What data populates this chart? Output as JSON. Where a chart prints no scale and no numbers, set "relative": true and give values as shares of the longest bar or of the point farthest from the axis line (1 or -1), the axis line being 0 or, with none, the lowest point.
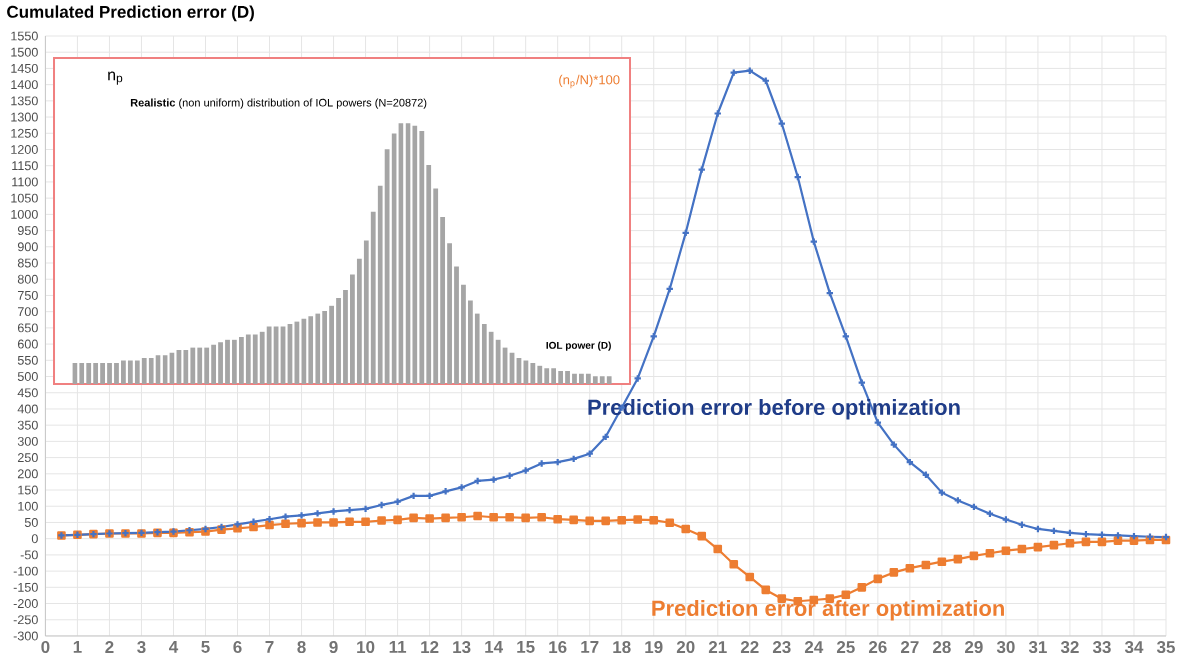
{
  "chart_data": [
    {
      "type": "line",
      "title": "Cumulated Prediction error (D)",
      "x": [
        0.5,
        1,
        1.5,
        2,
        2.5,
        3,
        3.5,
        4,
        4.5,
        5,
        5.5,
        6,
        6.5,
        7,
        7.5,
        8,
        8.5,
        9,
        9.5,
        10,
        10.5,
        11,
        11.5,
        12,
        12.5,
        13,
        13.5,
        14,
        14.5,
        15,
        15.5,
        16,
        16.5,
        17,
        17.5,
        18,
        18.5,
        19,
        19.5,
        20,
        20.5,
        21,
        21.5,
        22,
        22.5,
        23,
        23.5,
        24,
        24.5,
        25,
        25.5,
        26,
        26.5,
        27,
        27.5,
        28,
        28.5,
        29,
        29.5,
        30,
        30.5,
        31,
        31.5,
        32,
        32.5,
        33,
        33.5,
        34,
        34.5,
        35
      ],
      "series": [
        {
          "name": "Prediction error before optimization",
          "color": "#4472c4",
          "marker": "cross",
          "values": [
            10,
            12,
            14,
            16,
            17,
            18,
            20,
            22,
            26,
            30,
            36,
            44,
            52,
            60,
            68,
            72,
            78,
            84,
            88,
            92,
            104,
            114,
            132,
            132,
            146,
            158,
            178,
            182,
            194,
            210,
            232,
            236,
            246,
            262,
            314,
            404,
            494,
            624,
            770,
            943,
            1138,
            1311,
            1437,
            1443,
            1412,
            1280,
            1115,
            916,
            757,
            624,
            481,
            358,
            290,
            236,
            197,
            142,
            118,
            98,
            77,
            59,
            43,
            30,
            24,
            18,
            14,
            12,
            10,
            8,
            6,
            5
          ]
        },
        {
          "name": "Prediction error after optimization",
          "color": "#ed7d31",
          "marker": "square",
          "values": [
            10,
            12,
            14,
            16,
            16,
            16,
            18,
            18,
            20,
            22,
            28,
            32,
            36,
            42,
            46,
            48,
            50,
            50,
            52,
            52,
            56,
            58,
            64,
            62,
            64,
            66,
            70,
            66,
            66,
            64,
            66,
            60,
            58,
            55,
            55,
            57,
            59,
            57,
            49,
            30,
            8,
            -32,
            -79,
            -118,
            -158,
            -185,
            -193,
            -189,
            -185,
            -173,
            -150,
            -124,
            -104,
            -91,
            -81,
            -71,
            -63,
            -53,
            -45,
            -37,
            -32,
            -26,
            -20,
            -14,
            -10,
            -10,
            -6,
            -6,
            -4,
            -4
          ]
        }
      ],
      "xlim": [
        0,
        35
      ],
      "xticks": [
        0,
        1,
        2,
        3,
        4,
        5,
        6,
        7,
        8,
        9,
        10,
        11,
        12,
        13,
        14,
        15,
        16,
        17,
        18,
        19,
        20,
        21,
        22,
        23,
        24,
        25,
        26,
        27,
        28,
        29,
        30,
        31,
        32,
        33,
        34,
        35
      ],
      "ylim": [
        -300,
        1550
      ],
      "yticks": [
        -300,
        -250,
        -200,
        -150,
        -100,
        -50,
        0,
        50,
        100,
        150,
        200,
        250,
        300,
        350,
        400,
        450,
        500,
        550,
        600,
        650,
        700,
        750,
        800,
        850,
        900,
        950,
        1000,
        1050,
        1100,
        1150,
        1200,
        1250,
        1300,
        1350,
        1400,
        1450,
        1500,
        1550
      ],
      "grid": true
    },
    {
      "type": "bar",
      "relative": true,
      "title": "**Realistic** (non uniform) distribution of IOL powers (N=20872)",
      "xlabel": "IOL power (D)",
      "ylabel": "n$_{p}$",
      "y2label": "(n$_{p}$/N)*100",
      "color": "#a5a5a5",
      "categories": [
        null,
        null,
        null,
        null,
        null,
        null,
        null,
        null,
        null,
        null,
        null,
        null,
        null,
        null,
        null,
        null,
        null,
        null,
        null,
        null,
        null,
        null,
        null,
        null,
        null,
        null,
        null,
        null,
        null,
        null,
        null,
        null,
        null,
        null,
        null,
        null,
        null,
        null,
        null,
        null,
        null,
        null,
        null,
        null,
        null,
        null,
        null,
        null,
        null,
        null,
        null,
        null,
        null,
        null,
        null,
        null,
        null,
        null,
        null,
        null,
        null,
        null,
        null,
        null,
        null,
        null,
        null,
        null,
        null,
        null,
        null,
        null,
        null,
        null,
        null,
        null,
        null,
        null
      ],
      "values": [
        0.08,
        0.08,
        0.08,
        0.08,
        0.08,
        0.08,
        0.08,
        0.09,
        0.09,
        0.09,
        0.1,
        0.1,
        0.11,
        0.11,
        0.12,
        0.13,
        0.13,
        0.14,
        0.14,
        0.14,
        0.15,
        0.16,
        0.17,
        0.17,
        0.18,
        0.19,
        0.19,
        0.2,
        0.22,
        0.22,
        0.22,
        0.23,
        0.24,
        0.25,
        0.26,
        0.27,
        0.28,
        0.3,
        0.33,
        0.36,
        0.42,
        0.48,
        0.55,
        0.66,
        0.76,
        0.9,
        0.96,
        1,
        1,
        0.99,
        0.97,
        0.84,
        0.75,
        0.64,
        0.54,
        0.45,
        0.38,
        0.32,
        0.27,
        0.23,
        0.2,
        0.17,
        0.14,
        0.12,
        0.1,
        0.09,
        0.08,
        0.07,
        0.06,
        0.06,
        0.05,
        0.05,
        0.04,
        0.04,
        0.04,
        0.03,
        0.03,
        0.03
      ]
    }
  ]
}
